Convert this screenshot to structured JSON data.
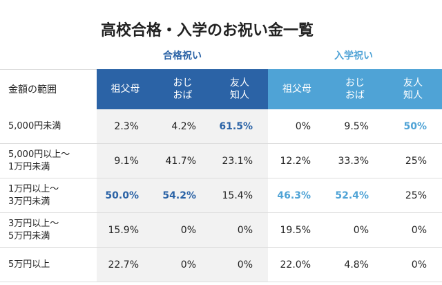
{
  "title": "高校合格・入学のお祝い金一覧",
  "groups": [
    "合格祝い",
    "入学祝い"
  ],
  "table": {
    "header": [
      "金額の範囲",
      "祖父母",
      "おじ\nおば",
      "友人\n知人",
      "祖父母",
      "おじ\nおば",
      "友人\n知人"
    ],
    "rows": [
      [
        "5,000円未満",
        "2.3%",
        "4.2%",
        "61.5%",
        "0%",
        "9.5%",
        "50%"
      ],
      [
        "5,000円以上〜\n1万円未満",
        "9.1%",
        "41.7%",
        "23.1%",
        "12.2%",
        "33.3%",
        "25%"
      ],
      [
        "1万円以上〜\n3万円未満",
        "50.0%",
        "54.2%",
        "15.4%",
        "46.3%",
        "52.4%",
        "25%"
      ],
      [
        "3万円以上〜\n5万円未満",
        "15.9%",
        "0%",
        "0%",
        "19.5%",
        "0%",
        "0%"
      ],
      [
        "5万円以上",
        "22.7%",
        "0%",
        "0%",
        "22.0%",
        "4.8%",
        "0%"
      ]
    ],
    "highlighted": [
      [
        0,
        3
      ],
      [
        0,
        6
      ],
      [
        2,
        1
      ],
      [
        2,
        2
      ],
      [
        2,
        4
      ],
      [
        2,
        5
      ]
    ]
  }
}
